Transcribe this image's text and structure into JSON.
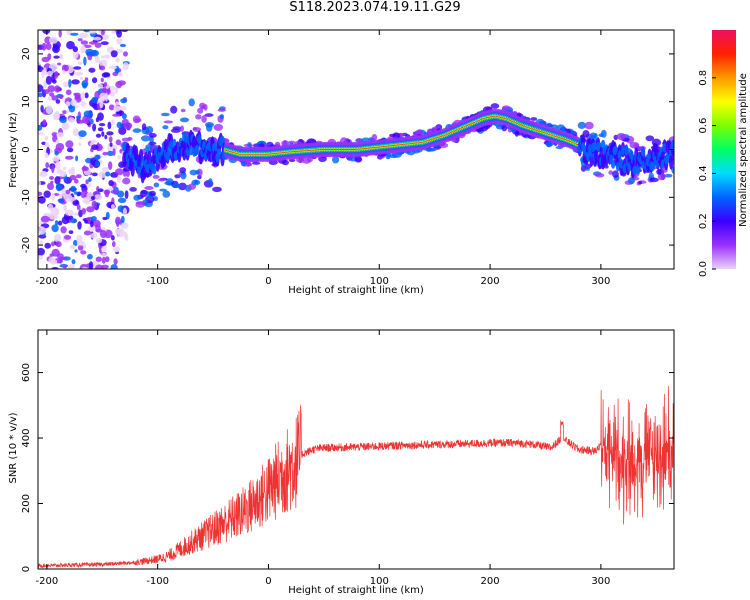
{
  "figure": {
    "title": "S118.2023.074.19.11.G29"
  },
  "chart_data": [
    {
      "type": "heatmap",
      "xlabel": "Height of straight line (km)",
      "ylabel": "Frequency (Hz)",
      "xlim": [
        -208,
        366
      ],
      "ylim": [
        -25,
        25
      ],
      "xticks": [
        -200,
        -100,
        0,
        100,
        200,
        300
      ],
      "yticks": [
        -20,
        -10,
        0,
        10,
        20
      ],
      "grid": false,
      "colorbar": {
        "label": "Normalized spectral amplitude",
        "range": [
          0,
          1
        ],
        "ticks": [
          0.0,
          0.2,
          0.4,
          0.6,
          0.8
        ],
        "colormap": [
          "#ebd2f7",
          "#9b30ff",
          "#3a00ff",
          "#0064ff",
          "#00dcff",
          "#00ff64",
          "#7cff00",
          "#ffff00",
          "#ff9900",
          "#ff2000",
          "#ee1060"
        ]
      },
      "ridge": {
        "description_units": "center frequency (Hz) of peak spectral amplitude vs height (km)",
        "x": [
          -130,
          -110,
          -90,
          -70,
          -55,
          -40,
          -25,
          -10,
          0,
          20,
          50,
          80,
          100,
          120,
          140,
          160,
          180,
          195,
          205,
          215,
          230,
          250,
          270,
          290,
          310,
          330,
          350,
          366
        ],
        "y": [
          -1,
          -4,
          0,
          1,
          0,
          0,
          -1,
          -1,
          -1,
          -0.5,
          0,
          0,
          0.5,
          1,
          1.5,
          3,
          5,
          6.5,
          7,
          6.5,
          5,
          3.5,
          2,
          0,
          -1.5,
          -2.5,
          -1.5,
          -1
        ]
      }
    },
    {
      "type": "line",
      "xlabel": "Height of straight line (km)",
      "ylabel": "SNR (10 * v/v)",
      "xlim": [
        -208,
        366
      ],
      "ylim": [
        0,
        730
      ],
      "xticks": [
        -200,
        -100,
        0,
        100,
        200,
        300
      ],
      "yticks": [
        0,
        200,
        400,
        600
      ],
      "grid": false,
      "series": [
        {
          "color": "#ee3333",
          "x": [
            -208,
            -180,
            -150,
            -120,
            -100,
            -90,
            -80,
            -70,
            -60,
            -50,
            -40,
            -30,
            -20,
            -10,
            0,
            10,
            20,
            30,
            40,
            50,
            75,
            100,
            125,
            150,
            175,
            200,
            225,
            240,
            255,
            265,
            280,
            295,
            300,
            310,
            320,
            330,
            340,
            350,
            360,
            366
          ],
          "y": [
            10,
            12,
            14,
            20,
            30,
            40,
            60,
            80,
            100,
            120,
            140,
            160,
            180,
            210,
            240,
            280,
            310,
            350,
            365,
            370,
            372,
            375,
            378,
            380,
            382,
            385,
            385,
            380,
            370,
            400,
            365,
            360,
            380,
            350,
            340,
            330,
            350,
            340,
            360,
            370
          ]
        }
      ]
    }
  ]
}
